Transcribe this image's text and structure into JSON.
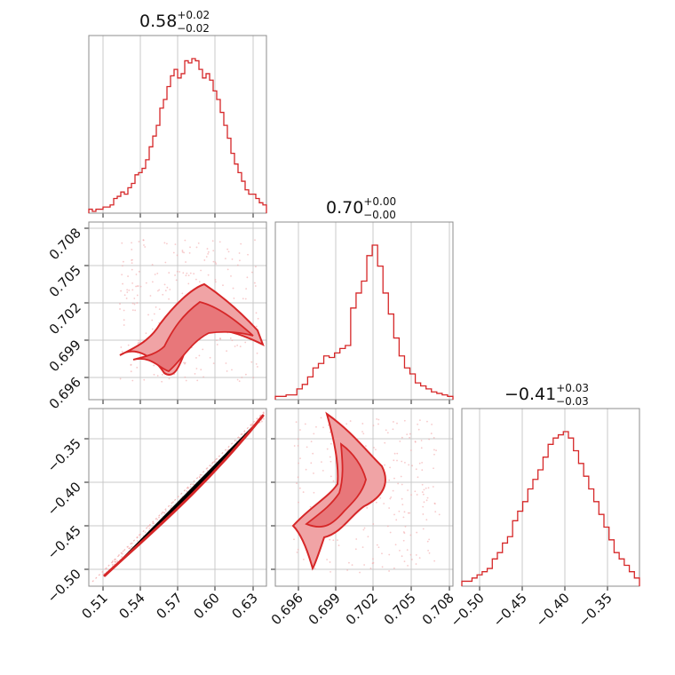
{
  "chart_data": {
    "type": "corner",
    "color": "#d62728",
    "parameters": [
      {
        "median": "0.58",
        "plus": "+0.02",
        "minus": "−0.02"
      },
      {
        "median": "0.70",
        "plus": "+0.00",
        "minus": "−0.00"
      },
      {
        "median": "−0.41",
        "plus": "+0.03",
        "minus": "−0.03"
      }
    ],
    "x_ticks": [
      [
        "0.51",
        "0.54",
        "0.57",
        "0.60",
        "0.63"
      ],
      [
        "0.696",
        "0.699",
        "0.702",
        "0.705",
        "0.708"
      ],
      [
        "−0.50",
        "−0.45",
        "−0.40",
        "−0.35"
      ]
    ],
    "y_ticks": {
      "row1": [
        "0.708",
        "0.705",
        "0.702",
        "0.699",
        "0.696"
      ],
      "row2": [
        "−0.35",
        "−0.40",
        "−0.45",
        "−0.50"
      ]
    },
    "histograms": [
      {
        "range": [
          0.499,
          0.643
        ],
        "counts": [
          1,
          0,
          1,
          1,
          2,
          2,
          3,
          6,
          7,
          9,
          8,
          11,
          13,
          17,
          18,
          20,
          24,
          30,
          35,
          40,
          48,
          52,
          58,
          63,
          66,
          62,
          64,
          70,
          69,
          71,
          70,
          66,
          62,
          64,
          61,
          56,
          52,
          46,
          40,
          34,
          27,
          22,
          18,
          14,
          10,
          8,
          8,
          6,
          4,
          3
        ]
      },
      {
        "range": [
          0.6948,
          0.7083
        ],
        "counts": [
          1,
          1,
          2,
          2,
          6,
          9,
          14,
          20,
          23,
          28,
          27,
          30,
          33,
          35,
          60,
          70,
          78,
          95,
          102,
          88,
          70,
          56,
          40,
          28,
          20,
          16,
          10,
          8,
          6,
          4,
          3,
          2,
          1
        ]
      },
      {
        "range": [
          -0.522,
          -0.325
        ],
        "counts": [
          1,
          1,
          2,
          3,
          4,
          5,
          8,
          10,
          13,
          15,
          20,
          23,
          26,
          30,
          33,
          36,
          40,
          44,
          46,
          47,
          48,
          46,
          42,
          38,
          34,
          30,
          26,
          22,
          18,
          14,
          10,
          8,
          6,
          4,
          2
        ]
      }
    ],
    "correlation_p1_p3": "near-linear"
  }
}
